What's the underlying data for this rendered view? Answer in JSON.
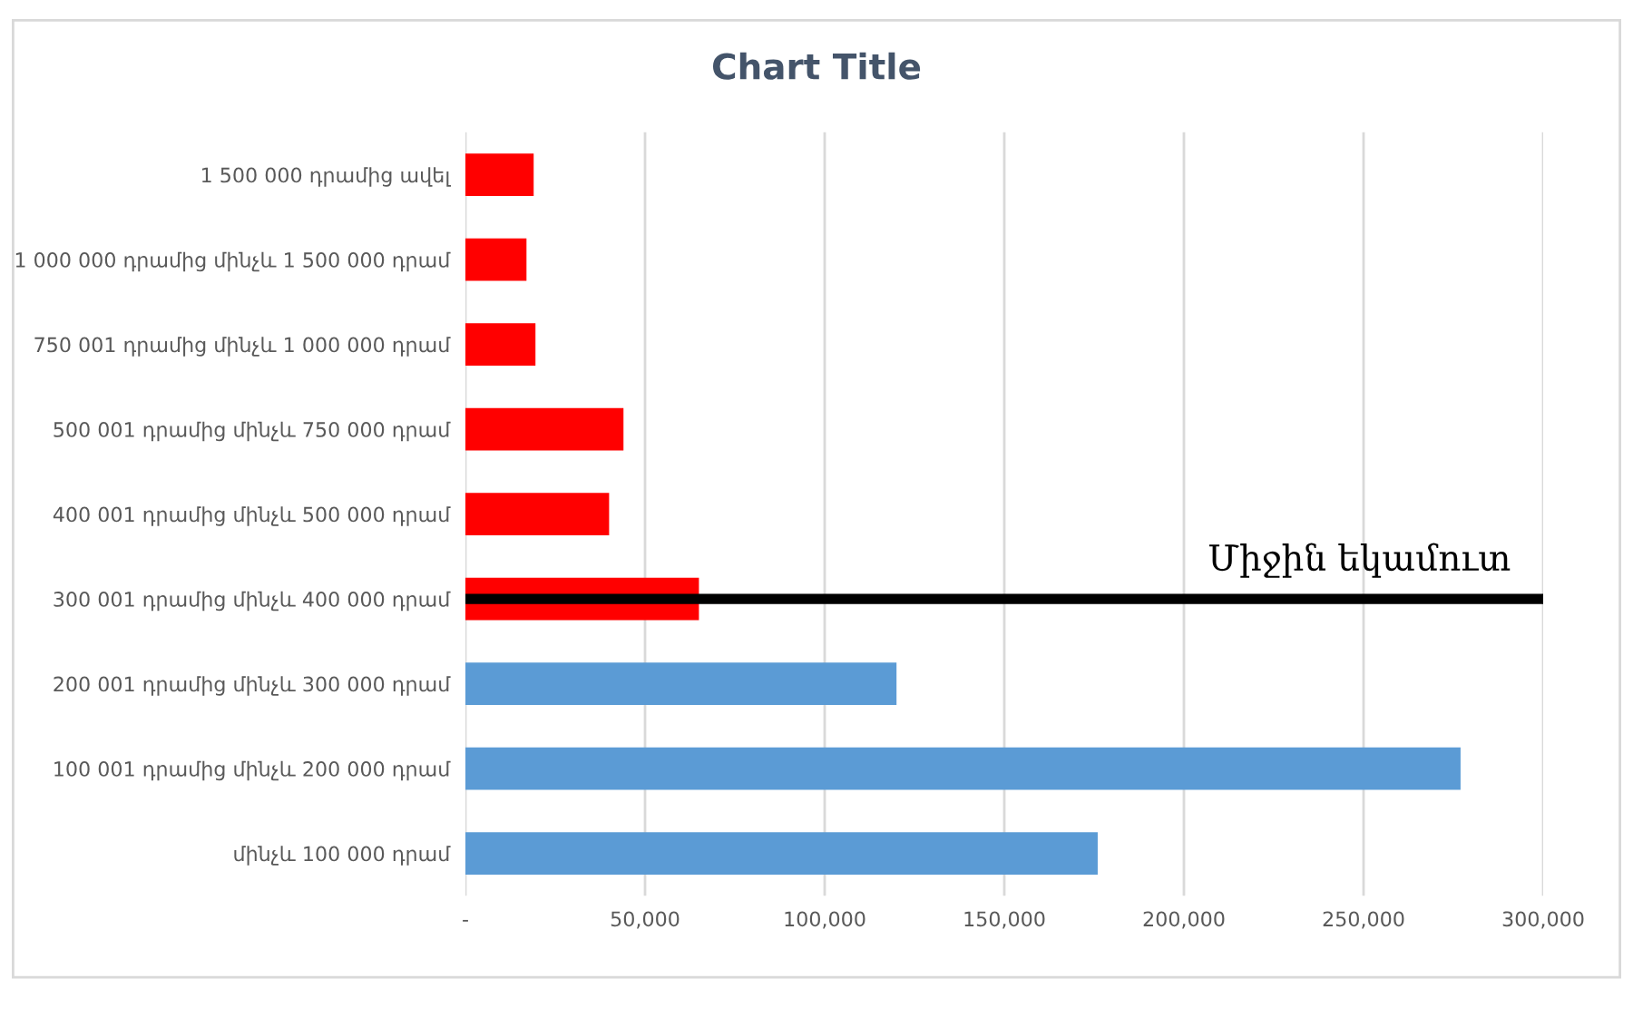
{
  "chart_data": {
    "type": "bar",
    "orientation": "horizontal",
    "title": "Chart Title",
    "categories": [
      "1 500 000 դրամից ավել",
      "1 000 000 դրամից մինչև 1 500 000 դրամ",
      "750 001 դրամից մինչև 1 000 000 դրամ",
      "500 001 դրամից մինչև 750 000 դրամ",
      "400 001 դրամից մինչև 500 000 դրամ",
      "300 001 դրամից մինչև 400 000 դրամ",
      "200 001 դրամից մինչև 300 000 դրամ",
      "100 001 դրամից մինչև 200 000 դրամ",
      "մինչև 100 000 դրամ"
    ],
    "values": [
      19000,
      17000,
      19500,
      44000,
      40000,
      65000,
      120000,
      277000,
      176000
    ],
    "colors": [
      "#ff0000",
      "#ff0000",
      "#ff0000",
      "#ff0000",
      "#ff0000",
      "#ff0000",
      "#5b9bd5",
      "#5b9bd5",
      "#5b9bd5"
    ],
    "xlim": [
      0,
      300000
    ],
    "xticks": [
      {
        "value": 0,
        "label": "-"
      },
      {
        "value": 50000,
        "label": "50,000"
      },
      {
        "value": 100000,
        "label": "100,000"
      },
      {
        "value": 150000,
        "label": "150,000"
      },
      {
        "value": 200000,
        "label": "200,000"
      },
      {
        "value": 250000,
        "label": "250,000"
      },
      {
        "value": 300000,
        "label": "300,000"
      }
    ],
    "ref_lines": [
      {
        "axis": "y",
        "value": "300 001 դրամից մինչև 400 000 դրամ",
        "label": "Միջին եկամուտ",
        "color": "#000000"
      }
    ],
    "grid": "x",
    "legend": false
  }
}
